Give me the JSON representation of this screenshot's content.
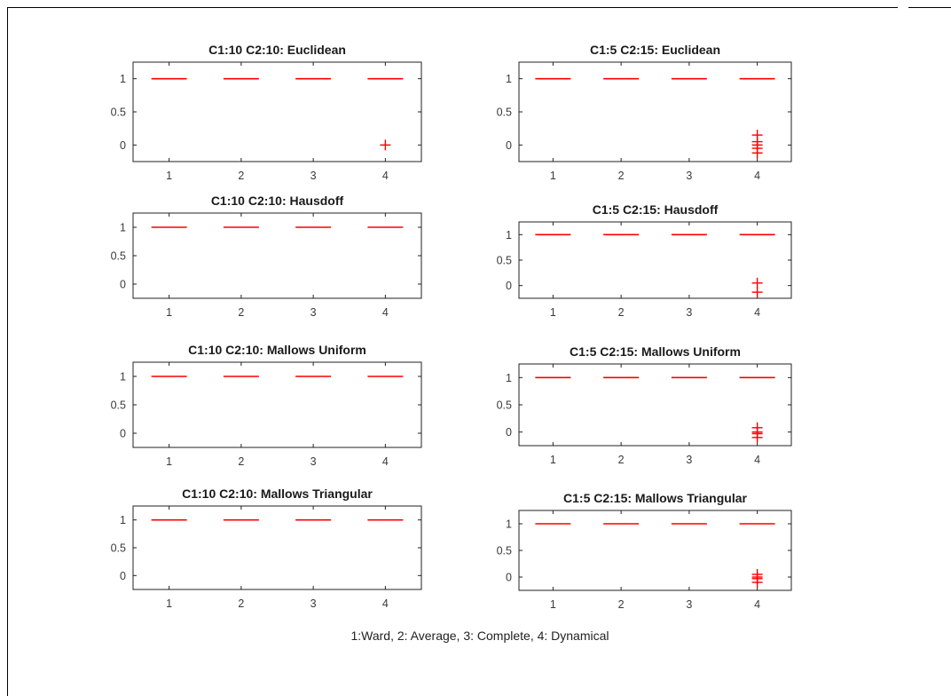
{
  "figure": {
    "xlabel": "1:Ward, 2: Average, 3: Complete, 4: Dynamical"
  },
  "colors": {
    "median": "#ff0000",
    "axis": "#222222",
    "tick_text": "#3a3a3a"
  },
  "chart_data": [
    {
      "type": "box",
      "title": "C1:10 C2:10: Euclidean",
      "categories": [
        "1",
        "2",
        "3",
        "4"
      ],
      "yticks": [
        "0",
        "0.5",
        "1"
      ],
      "ylim": [
        -0.25,
        1.25
      ],
      "medians": [
        1,
        1,
        1,
        1
      ],
      "outliers": [
        [],
        [],
        [],
        [
          0
        ]
      ]
    },
    {
      "type": "box",
      "title": "C1:5 C2:15: Euclidean",
      "categories": [
        "1",
        "2",
        "3",
        "4"
      ],
      "yticks": [
        "0",
        "0.5",
        "1"
      ],
      "ylim": [
        -0.25,
        1.25
      ],
      "medians": [
        1,
        1,
        1,
        1
      ],
      "outliers": [
        [],
        [],
        [],
        [
          0.15,
          0.05,
          0,
          -0.05,
          -0.12
        ]
      ]
    },
    {
      "type": "box",
      "title": "C1:10 C2:10: Hausdoff",
      "categories": [
        "1",
        "2",
        "3",
        "4"
      ],
      "yticks": [
        "0",
        "0.5",
        "1"
      ],
      "ylim": [
        -0.25,
        1.25
      ],
      "medians": [
        1,
        1,
        1,
        1
      ],
      "outliers": [
        [],
        [],
        [],
        []
      ]
    },
    {
      "type": "box",
      "title": "C1:5 C2:15: Hausdoff",
      "categories": [
        "1",
        "2",
        "3",
        "4"
      ],
      "yticks": [
        "0",
        "0.5",
        "1"
      ],
      "ylim": [
        -0.25,
        1.25
      ],
      "medians": [
        1,
        1,
        1,
        1
      ],
      "outliers": [
        [],
        [],
        [],
        [
          0.05,
          -0.13
        ]
      ]
    },
    {
      "type": "box",
      "title": "C1:10 C2:10: Mallows Uniform",
      "categories": [
        "1",
        "2",
        "3",
        "4"
      ],
      "yticks": [
        "0",
        "0.5",
        "1"
      ],
      "ylim": [
        -0.25,
        1.25
      ],
      "medians": [
        1,
        1,
        1,
        1
      ],
      "outliers": [
        [],
        [],
        [],
        []
      ]
    },
    {
      "type": "box",
      "title": "C1:5 C2:15: Mallows Uniform",
      "categories": [
        "1",
        "2",
        "3",
        "4"
      ],
      "yticks": [
        "0",
        "0.5",
        "1"
      ],
      "ylim": [
        -0.25,
        1.25
      ],
      "medians": [
        1,
        1,
        1,
        1
      ],
      "outliers": [
        [],
        [],
        [],
        [
          0.08,
          0,
          -0.03,
          -0.1
        ]
      ]
    },
    {
      "type": "box",
      "title": "C1:10 C2:10: Mallows Triangular",
      "categories": [
        "1",
        "2",
        "3",
        "4"
      ],
      "yticks": [
        "0",
        "0.5",
        "1"
      ],
      "ylim": [
        -0.25,
        1.25
      ],
      "medians": [
        1,
        1,
        1,
        1
      ],
      "outliers": [
        [],
        [],
        [],
        []
      ]
    },
    {
      "type": "box",
      "title": "C1:5 C2:15: Mallows Triangular",
      "categories": [
        "1",
        "2",
        "3",
        "4"
      ],
      "yticks": [
        "0",
        "0.5",
        "1"
      ],
      "ylim": [
        -0.25,
        1.25
      ],
      "medians": [
        1,
        1,
        1,
        1
      ],
      "outliers": [
        [],
        [],
        [],
        [
          0.05,
          0,
          -0.03,
          -0.1
        ]
      ]
    }
  ]
}
